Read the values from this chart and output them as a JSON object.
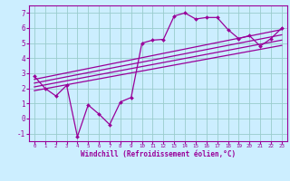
{
  "xlabel": "Windchill (Refroidissement éolien,°C)",
  "ylabel": "",
  "xlim": [
    -0.5,
    23.5
  ],
  "ylim": [
    -1.5,
    7.5
  ],
  "bg_color": "#cceeff",
  "line_color": "#990099",
  "grid_color": "#99cccc",
  "xtick_labels": [
    "0",
    "1",
    "2",
    "3",
    "4",
    "5",
    "6",
    "7",
    "8",
    "9",
    "10",
    "11",
    "12",
    "13",
    "14",
    "15",
    "16",
    "17",
    "18",
    "19",
    "20",
    "21",
    "22",
    "23"
  ],
  "xtick_vals": [
    0,
    1,
    2,
    3,
    4,
    5,
    6,
    7,
    8,
    9,
    10,
    11,
    12,
    13,
    14,
    15,
    16,
    17,
    18,
    19,
    20,
    21,
    22,
    23
  ],
  "yticks": [
    -1,
    0,
    1,
    2,
    3,
    4,
    5,
    6,
    7
  ],
  "series": [
    {
      "x": [
        0,
        1,
        2,
        3,
        4,
        5,
        6,
        7,
        8,
        9,
        10,
        11,
        12,
        13,
        14,
        15,
        16,
        17,
        18,
        19,
        20,
        21,
        22,
        23
      ],
      "y": [
        2.8,
        2.0,
        1.5,
        2.2,
        -1.2,
        0.9,
        0.3,
        -0.4,
        1.1,
        1.4,
        5.0,
        5.2,
        5.25,
        6.8,
        7.0,
        6.6,
        6.7,
        6.7,
        5.9,
        5.3,
        5.5,
        4.8,
        5.3,
        6.0
      ],
      "marker": true
    },
    {
      "x": [
        0,
        23
      ],
      "y": [
        2.6,
        5.9
      ],
      "marker": false
    },
    {
      "x": [
        0,
        23
      ],
      "y": [
        2.35,
        5.55
      ],
      "marker": false
    },
    {
      "x": [
        0,
        23
      ],
      "y": [
        2.1,
        5.2
      ],
      "marker": false
    },
    {
      "x": [
        0,
        23
      ],
      "y": [
        1.85,
        4.85
      ],
      "marker": false
    }
  ]
}
